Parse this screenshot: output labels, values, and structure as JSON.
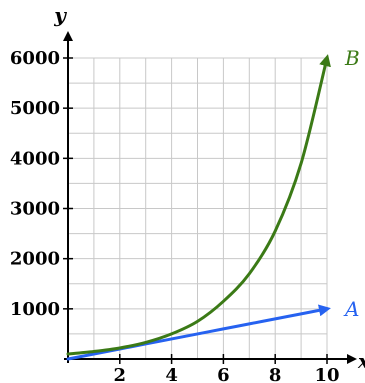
{
  "chart_data": {
    "type": "line",
    "xlabel": "x",
    "ylabel": "y",
    "xlim": [
      0,
      10
    ],
    "ylim": [
      0,
      6000
    ],
    "grid": true,
    "x_ticks": [
      2,
      4,
      6,
      8,
      10
    ],
    "y_ticks": [
      1000,
      2000,
      3000,
      4000,
      5000,
      6000
    ],
    "x_tick_labels": [
      "2",
      "4",
      "6",
      "8",
      "10"
    ],
    "y_tick_labels": [
      "1000",
      "2000",
      "3000",
      "4000",
      "5000",
      "6000"
    ],
    "series": [
      {
        "name": "A",
        "color": "#2662f0",
        "x": [
          0,
          1,
          2,
          3,
          4,
          5,
          6,
          7,
          8,
          9,
          10
        ],
        "y": [
          0,
          100,
          200,
          300,
          400,
          500,
          600,
          700,
          800,
          900,
          1000
        ]
      },
      {
        "name": "B",
        "color": "#3b7a16",
        "x": [
          0,
          1,
          2,
          3,
          4,
          5,
          6,
          7,
          8,
          9,
          10
        ],
        "y": [
          100,
          150,
          220,
          330,
          500,
          750,
          1150,
          1700,
          2550,
          3900,
          6000
        ]
      }
    ]
  }
}
